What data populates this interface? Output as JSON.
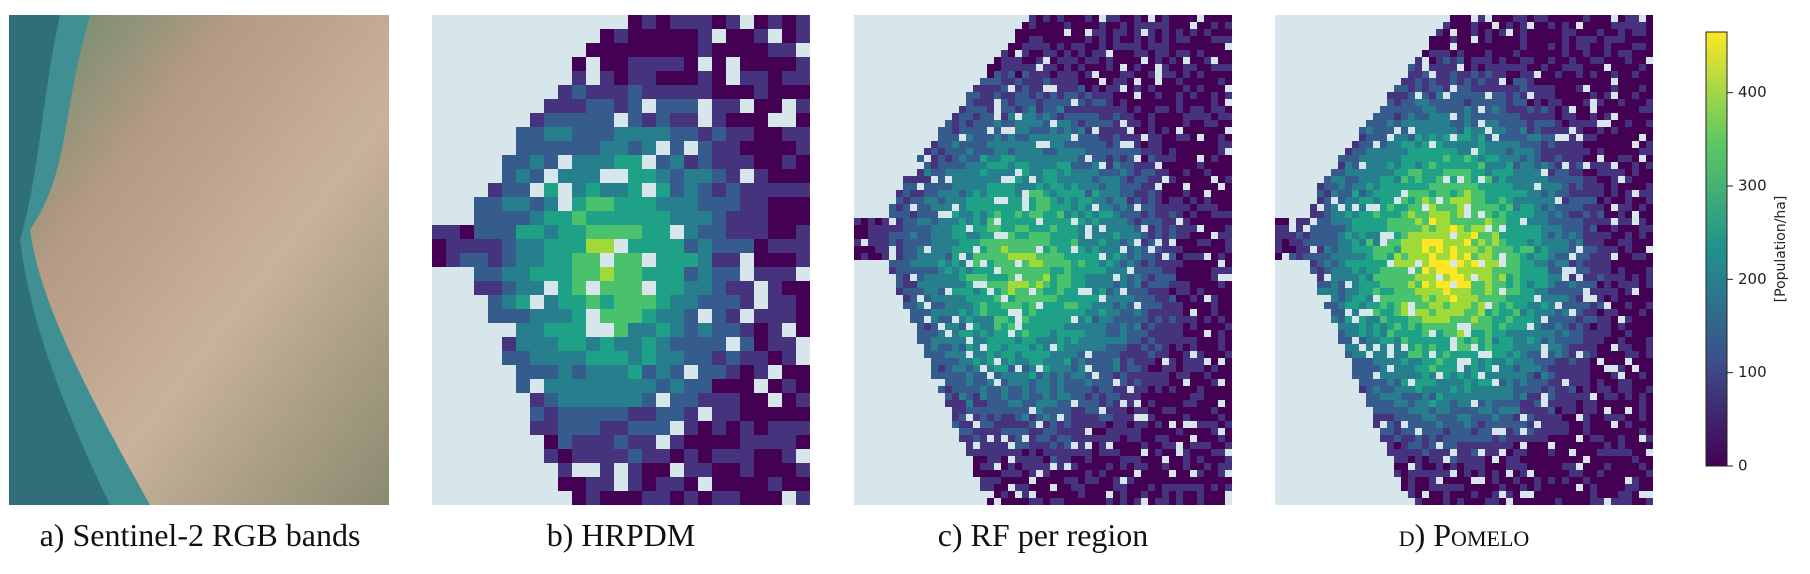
{
  "captions": [
    "a) Sentinel-2 RGB bands",
    "b) HRPDM",
    "c) RF per region",
    "d) Pomelo"
  ],
  "colorbar": {
    "label": "[Population/ha]",
    "range": [
      0,
      465
    ],
    "ticks": [
      0,
      100,
      200,
      300,
      400
    ]
  }
}
